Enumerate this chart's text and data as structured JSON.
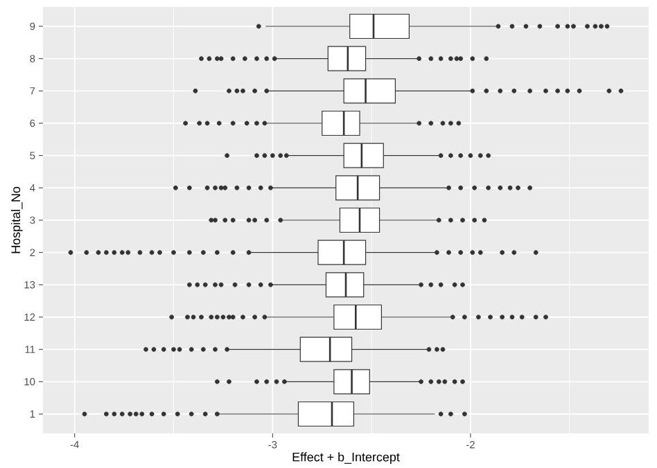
{
  "chart_data": {
    "type": "box",
    "orientation": "horizontal",
    "xlabel": "Effect + b_Intercept",
    "ylabel": "Hospital_No",
    "categories": [
      "9",
      "8",
      "7",
      "6",
      "5",
      "4",
      "3",
      "2",
      "13",
      "12",
      "11",
      "10",
      "1"
    ],
    "xlim": [
      -4.16,
      -1.1
    ],
    "xticks": [
      -4,
      -3,
      -2
    ],
    "grid": true,
    "boxes": [
      {
        "low": -3.035,
        "q1": -2.61,
        "median": -2.49,
        "q3": -2.31,
        "high": -1.87,
        "outliers": [
          -3.07,
          -1.86,
          -1.79,
          -1.72,
          -1.65,
          -1.56,
          -1.51,
          -1.48,
          -1.41,
          -1.37,
          -1.34,
          -1.31
        ]
      },
      {
        "low": -2.98,
        "q1": -2.72,
        "median": -2.62,
        "q3": -2.53,
        "high": -2.27,
        "outliers": [
          -3.36,
          -3.32,
          -3.28,
          -3.26,
          -3.2,
          -3.14,
          -3.08,
          -3.03,
          -2.99,
          -2.26,
          -2.2,
          -2.15,
          -2.1,
          -2.07,
          -2.05,
          -1.99,
          -1.92
        ]
      },
      {
        "low": -3.02,
        "q1": -2.64,
        "median": -2.53,
        "q3": -2.38,
        "high": -2.0,
        "outliers": [
          -3.39,
          -3.22,
          -3.18,
          -3.15,
          -3.09,
          -3.03,
          -1.99,
          -1.92,
          -1.85,
          -1.78,
          -1.7,
          -1.62,
          -1.56,
          -1.51,
          -1.45,
          -1.3,
          -1.24
        ]
      },
      {
        "low": -3.03,
        "q1": -2.75,
        "median": -2.64,
        "q3": -2.56,
        "high": -2.27,
        "outliers": [
          -3.44,
          -3.37,
          -3.33,
          -3.27,
          -3.2,
          -3.13,
          -3.08,
          -3.04,
          -2.26,
          -2.2,
          -2.14,
          -2.1,
          -2.06
        ]
      },
      {
        "low": -2.92,
        "q1": -2.64,
        "median": -2.55,
        "q3": -2.44,
        "high": -2.16,
        "outliers": [
          -3.23,
          -3.08,
          -3.04,
          -3.0,
          -2.96,
          -2.93,
          -2.15,
          -2.1,
          -2.05,
          -2.0,
          -1.95,
          -1.91
        ]
      },
      {
        "low": -3.0,
        "q1": -2.68,
        "median": -2.57,
        "q3": -2.46,
        "high": -2.12,
        "outliers": [
          -3.49,
          -3.42,
          -3.33,
          -3.29,
          -3.26,
          -3.24,
          -3.18,
          -3.12,
          -3.06,
          -3.01,
          -2.11,
          -2.05,
          -1.98,
          -1.91,
          -1.85,
          -1.8,
          -1.76,
          -1.7
        ]
      },
      {
        "low": -2.95,
        "q1": -2.66,
        "median": -2.56,
        "q3": -2.46,
        "high": -2.17,
        "outliers": [
          -3.31,
          -3.29,
          -3.24,
          -3.2,
          -3.12,
          -3.09,
          -3.03,
          -2.96,
          -2.16,
          -2.1,
          -2.04,
          -1.98,
          -1.93
        ]
      },
      {
        "low": -3.11,
        "q1": -2.77,
        "median": -2.64,
        "q3": -2.53,
        "high": -2.18,
        "outliers": [
          -4.02,
          -3.94,
          -3.88,
          -3.84,
          -3.8,
          -3.76,
          -3.73,
          -3.67,
          -3.61,
          -3.57,
          -3.5,
          -3.42,
          -3.35,
          -3.28,
          -3.2,
          -3.12,
          -2.17,
          -2.11,
          -2.05,
          -1.99,
          -1.95,
          -1.84,
          -1.78,
          -1.67
        ]
      },
      {
        "low": -3.0,
        "q1": -2.73,
        "median": -2.63,
        "q3": -2.54,
        "high": -2.26,
        "outliers": [
          -3.42,
          -3.38,
          -3.34,
          -3.29,
          -3.26,
          -3.19,
          -3.12,
          -3.06,
          -3.01,
          -2.25,
          -2.2,
          -2.15,
          -2.08,
          -2.04
        ]
      },
      {
        "low": -3.03,
        "q1": -2.69,
        "median": -2.58,
        "q3": -2.45,
        "high": -2.1,
        "outliers": [
          -3.51,
          -3.43,
          -3.4,
          -3.36,
          -3.31,
          -3.28,
          -3.25,
          -3.22,
          -3.2,
          -3.15,
          -3.09,
          -3.04,
          -2.09,
          -2.03,
          -1.96,
          -1.9,
          -1.84,
          -1.79,
          -1.74,
          -1.67,
          -1.62
        ]
      },
      {
        "low": -3.22,
        "q1": -2.86,
        "median": -2.71,
        "q3": -2.6,
        "high": -2.22,
        "outliers": [
          -3.64,
          -3.6,
          -3.55,
          -3.5,
          -3.47,
          -3.41,
          -3.35,
          -3.29,
          -3.23,
          -2.21,
          -2.17,
          -2.14
        ]
      },
      {
        "low": -2.93,
        "q1": -2.69,
        "median": -2.6,
        "q3": -2.51,
        "high": -2.26,
        "outliers": [
          -3.28,
          -3.22,
          -3.08,
          -3.03,
          -2.98,
          -2.94,
          -2.25,
          -2.2,
          -2.16,
          -2.13,
          -2.08,
          -2.04
        ]
      },
      {
        "low": -3.27,
        "q1": -2.87,
        "median": -2.7,
        "q3": -2.59,
        "high": -2.18,
        "outliers": [
          -3.95,
          -3.84,
          -3.8,
          -3.76,
          -3.72,
          -3.69,
          -3.66,
          -3.61,
          -3.55,
          -3.48,
          -3.41,
          -3.34,
          -3.28,
          -2.15,
          -2.1,
          -2.03
        ]
      }
    ]
  }
}
